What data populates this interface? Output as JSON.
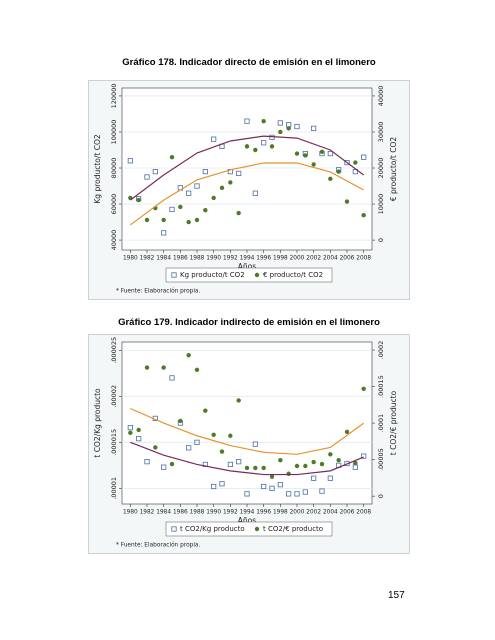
{
  "page_number": "157",
  "chart_data": [
    {
      "type": "scatter",
      "title": "Gráfico 178. Indicador directo de emisión en el limonero",
      "x_label": "Años",
      "y_label": "Kg producto/t CO2",
      "y2_label": "€ producto/t CO2",
      "note": "* Fuente: Elaboración propia.",
      "grid": true,
      "legend": "bottom",
      "x": [
        1980,
        1981,
        1982,
        1983,
        1984,
        1985,
        1986,
        1987,
        1988,
        1989,
        1990,
        1991,
        1992,
        1993,
        1994,
        1995,
        1996,
        1997,
        1998,
        1999,
        2000,
        2001,
        2002,
        2003,
        2004,
        2005,
        2006,
        2007,
        2008
      ],
      "xlim": [
        1979,
        2009
      ],
      "xticks": [
        1980,
        1982,
        1984,
        1986,
        1988,
        1990,
        1992,
        1994,
        1996,
        1998,
        2000,
        2002,
        2004,
        2006,
        2008
      ],
      "ylim": [
        34500,
        124400
      ],
      "yticks": [
        40000,
        60000,
        80000,
        100000,
        120000
      ],
      "y2lim": [
        -2750,
        42200
      ],
      "y2ticks": [
        0,
        10000,
        20000,
        30000,
        40000
      ],
      "series": [
        {
          "name": "Kg producto/t CO2",
          "color": "#4a6fa5",
          "marker": "square",
          "values": [
            84000,
            63000,
            75000,
            78000,
            44000,
            57000,
            69000,
            66000,
            70000,
            78000,
            96000,
            92000,
            78000,
            77000,
            106000,
            66000,
            94000,
            97000,
            105000,
            104000,
            103000,
            88000,
            102000,
            88000,
            88000,
            79000,
            83000,
            78000,
            86000
          ]
        },
        {
          "name": "€ producto/t CO2",
          "color": "#4f7a28",
          "marker": "circle",
          "axis": "y2",
          "values": [
            11700,
            11100,
            5600,
            8900,
            5600,
            23000,
            9200,
            5000,
            5600,
            8300,
            11700,
            14500,
            16000,
            7500,
            26000,
            25000,
            33000,
            26000,
            30000,
            31000,
            24000,
            23500,
            21000,
            24500,
            17000,
            19000,
            10700,
            21500,
            6900
          ]
        },
        {
          "color": "#7a2a5a",
          "marker": "line",
          "x": [
            1980,
            1984,
            1988,
            1992,
            1996,
            2000,
            2004,
            2008
          ],
          "values": [
            62200,
            76100,
            88300,
            95000,
            97700,
            96600,
            90000,
            76100
          ]
        },
        {
          "color": "#e8922a",
          "marker": "line",
          "axis": "y2",
          "x": [
            1980,
            1984,
            1988,
            1992,
            1996,
            2000,
            2004,
            2008
          ],
          "values": [
            4200,
            11100,
            16700,
            19500,
            21400,
            21400,
            18900,
            13900
          ]
        }
      ]
    },
    {
      "type": "scatter",
      "title": "Gráfico 179. Indicador indirecto de emisión en el limonero",
      "x_label": "Años",
      "y_label": "t CO2/Kg producto",
      "y2_label": "t CO2/€ producto",
      "note": "* Fuente: Elaboración propia.",
      "grid": true,
      "legend": "bottom",
      "x": [
        1980,
        1981,
        1982,
        1983,
        1984,
        1985,
        1986,
        1987,
        1988,
        1989,
        1990,
        1991,
        1992,
        1993,
        1994,
        1995,
        1996,
        1997,
        1998,
        1999,
        2000,
        2001,
        2002,
        2003,
        2004,
        2005,
        2006,
        2007,
        2008
      ],
      "xlim": [
        1979,
        2009
      ],
      "xticks": [
        1980,
        1982,
        1984,
        1986,
        1988,
        1990,
        1992,
        1994,
        1996,
        1998,
        2000,
        2002,
        2004,
        2006,
        2008
      ],
      "ylim": [
        8.3e-06,
        2.59e-05
      ],
      "yticks": [
        {
          "value": 1e-05,
          "label": ".00001"
        },
        {
          "value": 1.5e-05,
          "label": ".000015"
        },
        {
          "value": 2e-05,
          "label": ".00002"
        },
        {
          "value": 2.5e-05,
          "label": ".000025"
        }
      ],
      "y2lim": [
        -1.07e-05,
        0.000211
      ],
      "y2ticks": [
        0,
        {
          "value": 5e-05,
          "label": ".00005"
        },
        {
          "value": 0.0001,
          "label": ".0001"
        },
        {
          "value": 0.00015,
          "label": ".00015"
        },
        {
          "value": 0.0002,
          "label": ".0002"
        }
      ],
      "series": [
        {
          "name": "t CO2/Kg producto",
          "color": "#4a6fa5",
          "marker": "square",
          "values": [
            1.66e-05,
            1.54e-05,
            1.29e-05,
            1.76e-05,
            1.23e-05,
            2.2e-05,
            1.71e-05,
            1.44e-05,
            1.5e-05,
            1.26e-05,
            1.02e-05,
            1.05e-05,
            1.26e-05,
            1.29e-05,
            9.4e-06,
            1.48e-05,
            1.02e-05,
            1e-05,
            1.04e-05,
            9.4e-06,
            9.4e-06,
            9.6e-06,
            1.11e-05,
            9.7e-06,
            1.11e-05,
            1.25e-05,
            1.27e-05,
            1.23e-05,
            1.35e-05
          ]
        },
        {
          "name": "t CO2/€ producto",
          "color": "#4f7a28",
          "marker": "circle",
          "axis": "y2",
          "values": [
            8.67e-05,
            9.07e-05,
            0.000176,
            6.67e-05,
            0.000176,
            4.4e-05,
            0.000103,
            0.000193,
            0.000173,
            0.000117,
            8.4e-05,
            6.1e-05,
            8.27e-05,
            0.000131,
            3.87e-05,
            3.87e-05,
            3.87e-05,
            2.67e-05,
            4.93e-05,
            3.07e-05,
            4.13e-05,
            4.13e-05,
            4.67e-05,
            4.4e-05,
            5.73e-05,
            4.93e-05,
            8.8e-05,
            4.53e-05,
            0.000147
          ]
        },
        {
          "color": "#7a2a5a",
          "marker": "line",
          "x": [
            1980,
            1984,
            1988,
            1992,
            1996,
            2000,
            2004,
            2008
          ],
          "values": [
            1.5e-05,
            1.36e-05,
            1.26e-05,
            1.19e-05,
            1.15e-05,
            1.15e-05,
            1.19e-05,
            1.34e-05
          ]
        },
        {
          "color": "#e8922a",
          "marker": "line",
          "axis": "y2",
          "x": [
            1980,
            1984,
            1988,
            1992,
            1996,
            2000,
            2004,
            2008
          ],
          "values": [
            0.00012,
            0.0001,
            8.27e-05,
            6.93e-05,
            6e-05,
            5.73e-05,
            6.67e-05,
            0.0001
          ]
        }
      ]
    }
  ]
}
